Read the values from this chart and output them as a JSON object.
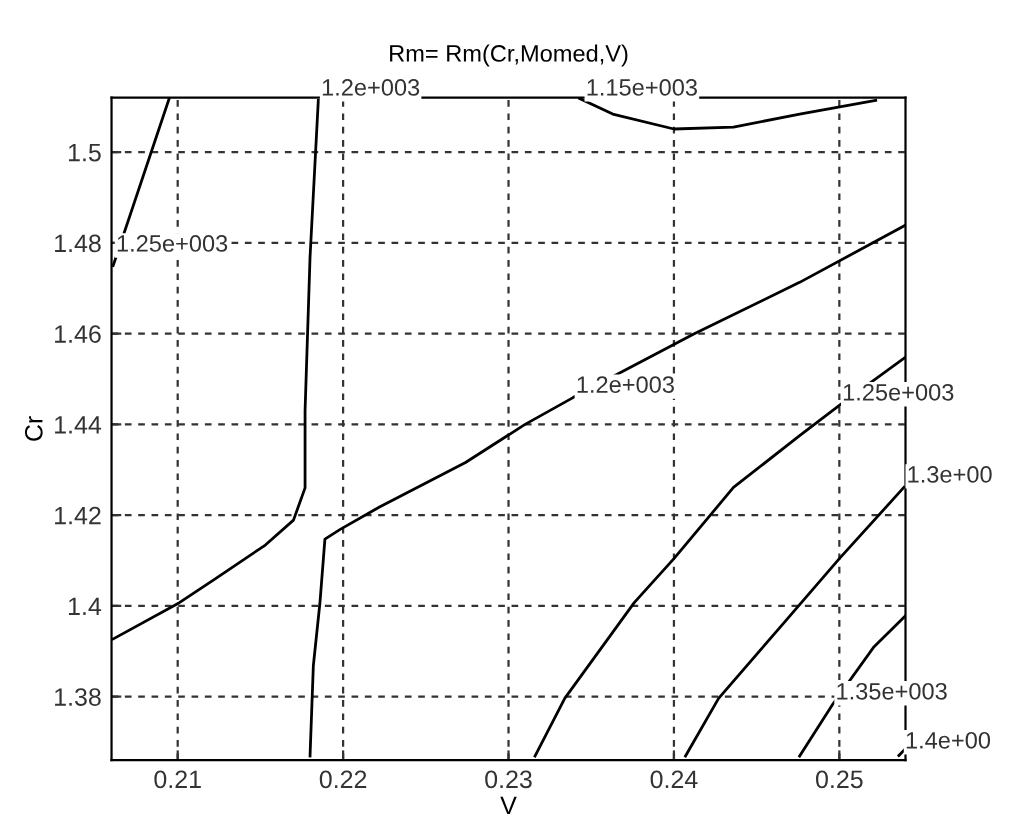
{
  "chart_data": {
    "type": "line",
    "title": "Rm= Rm(Cr,Momed,V)",
    "xlabel": "V",
    "ylabel": "Cr",
    "xlim": [
      0.206,
      0.254
    ],
    "ylim": [
      1.366,
      1.512
    ],
    "xticks": [
      0.21,
      0.22,
      0.23,
      0.24,
      0.25
    ],
    "yticks": [
      1.38,
      1.4,
      1.42,
      1.44,
      1.46,
      1.48,
      1.5
    ],
    "grid": true,
    "marker": "none",
    "line_style": "solid",
    "series": [
      {
        "color": "#000000",
        "x": [
          0.2095,
          0.2061
        ],
        "values": [
          1.512,
          1.475
        ]
      },
      {
        "color": "#000000",
        "x": [
          0.2185,
          0.218,
          0.2177,
          0.2177,
          0.217,
          0.2153,
          0.2122,
          0.2101,
          0.2061
        ],
        "values": [
          1.5114,
          1.4768,
          1.443,
          1.426,
          1.4189,
          1.4134,
          1.4058,
          1.4007,
          1.3927
        ]
      },
      {
        "color": "#000000",
        "x": [
          0.218,
          0.2182,
          0.2186,
          0.2189,
          0.2198,
          0.2222,
          0.2274,
          0.231,
          0.2339,
          0.2412,
          0.2476,
          0.254
        ],
        "values": [
          1.3669,
          1.3868,
          1.4007,
          1.4147,
          1.4168,
          1.4218,
          1.4316,
          1.44,
          1.4459,
          1.4599,
          1.4713,
          1.4839
        ]
      },
      {
        "color": "#000000",
        "x": [
          0.2343,
          0.2363,
          0.24,
          0.2436,
          0.2476,
          0.2522
        ],
        "values": [
          1.5118,
          1.5084,
          1.5051,
          1.5055,
          1.5084,
          1.5114
        ]
      },
      {
        "color": "#000000",
        "x": [
          0.2316,
          0.2334,
          0.2376,
          0.24,
          0.2436,
          0.2476,
          0.25,
          0.254
        ],
        "values": [
          1.3669,
          1.3796,
          1.4007,
          1.4104,
          1.4261,
          1.4375,
          1.4442,
          1.4548
        ]
      },
      {
        "color": "#000000",
        "x": [
          0.2407,
          0.2427,
          0.2464,
          0.25,
          0.2539
        ],
        "values": [
          1.3669,
          1.3796,
          1.3952,
          1.4104,
          1.4261
        ]
      },
      {
        "color": "#000000",
        "x": [
          0.2476,
          0.2496,
          0.2521,
          0.254
        ],
        "values": [
          1.3669,
          1.3783,
          1.391,
          1.3978
        ]
      },
      {
        "color": "#000000",
        "x": [
          0.2536,
          0.254
        ],
        "values": [
          1.367,
          1.3685
        ]
      }
    ],
    "annotations": [
      {
        "text": "1.25e+003",
        "x": 0.2061,
        "y": 1.477
      },
      {
        "text": "1.2e+003",
        "x": 0.2185,
        "y": 1.5114
      },
      {
        "text": "1.15e+003",
        "x": 0.2345,
        "y": 1.5114
      },
      {
        "text": "1.2e+003",
        "x": 0.2339,
        "y": 1.4459
      },
      {
        "text": "1.25e+003",
        "x": 0.25,
        "y": 1.4442
      },
      {
        "text": "1.3e+00",
        "x": 0.2539,
        "y": 1.4261
      },
      {
        "text": "1.35e+003",
        "x": 0.2496,
        "y": 1.3783
      },
      {
        "text": "1.4e+00",
        "x": 0.2538,
        "y": 1.3675
      }
    ]
  }
}
